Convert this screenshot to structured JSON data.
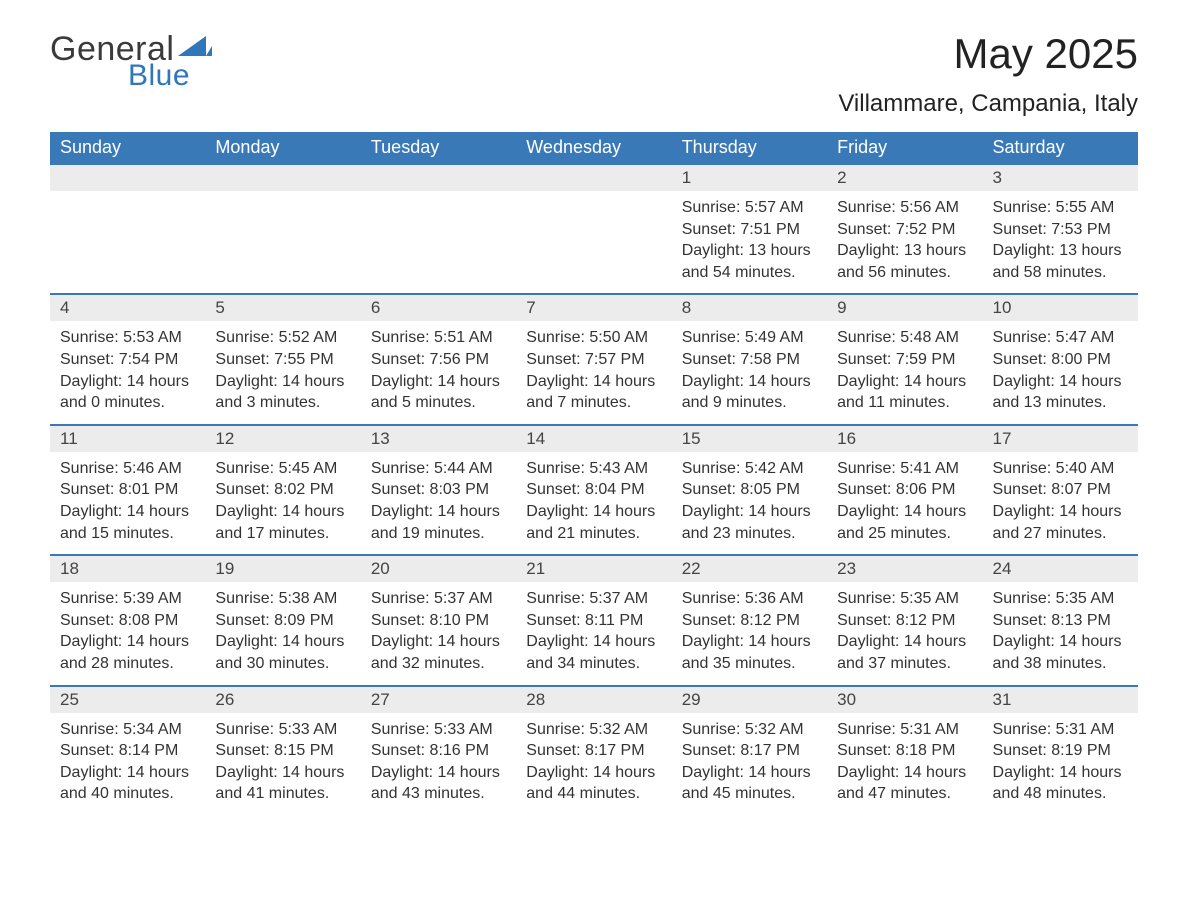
{
  "logo": {
    "word1": "General",
    "word2": "Blue",
    "text_color": "#3a3a3a",
    "accent_color": "#2f76bb"
  },
  "title": "May 2025",
  "location": "Villammare, Campania, Italy",
  "colors": {
    "header_bg": "#3a79b7",
    "header_text": "#ffffff",
    "daynum_bg": "#ececec",
    "daynum_text": "#444444",
    "body_text": "#333333",
    "row_divider": "#3a79b7",
    "page_bg": "#ffffff"
  },
  "fonts": {
    "title_size_pt": 32,
    "location_size_pt": 18,
    "header_size_pt": 14,
    "daynum_size_pt": 13,
    "body_size_pt": 12
  },
  "weekdays": [
    "Sunday",
    "Monday",
    "Tuesday",
    "Wednesday",
    "Thursday",
    "Friday",
    "Saturday"
  ],
  "weeks": [
    [
      null,
      null,
      null,
      null,
      {
        "n": 1,
        "sunrise": "5:57 AM",
        "sunset": "7:51 PM",
        "daylight": "13 hours and 54 minutes."
      },
      {
        "n": 2,
        "sunrise": "5:56 AM",
        "sunset": "7:52 PM",
        "daylight": "13 hours and 56 minutes."
      },
      {
        "n": 3,
        "sunrise": "5:55 AM",
        "sunset": "7:53 PM",
        "daylight": "13 hours and 58 minutes."
      }
    ],
    [
      {
        "n": 4,
        "sunrise": "5:53 AM",
        "sunset": "7:54 PM",
        "daylight": "14 hours and 0 minutes."
      },
      {
        "n": 5,
        "sunrise": "5:52 AM",
        "sunset": "7:55 PM",
        "daylight": "14 hours and 3 minutes."
      },
      {
        "n": 6,
        "sunrise": "5:51 AM",
        "sunset": "7:56 PM",
        "daylight": "14 hours and 5 minutes."
      },
      {
        "n": 7,
        "sunrise": "5:50 AM",
        "sunset": "7:57 PM",
        "daylight": "14 hours and 7 minutes."
      },
      {
        "n": 8,
        "sunrise": "5:49 AM",
        "sunset": "7:58 PM",
        "daylight": "14 hours and 9 minutes."
      },
      {
        "n": 9,
        "sunrise": "5:48 AM",
        "sunset": "7:59 PM",
        "daylight": "14 hours and 11 minutes."
      },
      {
        "n": 10,
        "sunrise": "5:47 AM",
        "sunset": "8:00 PM",
        "daylight": "14 hours and 13 minutes."
      }
    ],
    [
      {
        "n": 11,
        "sunrise": "5:46 AM",
        "sunset": "8:01 PM",
        "daylight": "14 hours and 15 minutes."
      },
      {
        "n": 12,
        "sunrise": "5:45 AM",
        "sunset": "8:02 PM",
        "daylight": "14 hours and 17 minutes."
      },
      {
        "n": 13,
        "sunrise": "5:44 AM",
        "sunset": "8:03 PM",
        "daylight": "14 hours and 19 minutes."
      },
      {
        "n": 14,
        "sunrise": "5:43 AM",
        "sunset": "8:04 PM",
        "daylight": "14 hours and 21 minutes."
      },
      {
        "n": 15,
        "sunrise": "5:42 AM",
        "sunset": "8:05 PM",
        "daylight": "14 hours and 23 minutes."
      },
      {
        "n": 16,
        "sunrise": "5:41 AM",
        "sunset": "8:06 PM",
        "daylight": "14 hours and 25 minutes."
      },
      {
        "n": 17,
        "sunrise": "5:40 AM",
        "sunset": "8:07 PM",
        "daylight": "14 hours and 27 minutes."
      }
    ],
    [
      {
        "n": 18,
        "sunrise": "5:39 AM",
        "sunset": "8:08 PM",
        "daylight": "14 hours and 28 minutes."
      },
      {
        "n": 19,
        "sunrise": "5:38 AM",
        "sunset": "8:09 PM",
        "daylight": "14 hours and 30 minutes."
      },
      {
        "n": 20,
        "sunrise": "5:37 AM",
        "sunset": "8:10 PM",
        "daylight": "14 hours and 32 minutes."
      },
      {
        "n": 21,
        "sunrise": "5:37 AM",
        "sunset": "8:11 PM",
        "daylight": "14 hours and 34 minutes."
      },
      {
        "n": 22,
        "sunrise": "5:36 AM",
        "sunset": "8:12 PM",
        "daylight": "14 hours and 35 minutes."
      },
      {
        "n": 23,
        "sunrise": "5:35 AM",
        "sunset": "8:12 PM",
        "daylight": "14 hours and 37 minutes."
      },
      {
        "n": 24,
        "sunrise": "5:35 AM",
        "sunset": "8:13 PM",
        "daylight": "14 hours and 38 minutes."
      }
    ],
    [
      {
        "n": 25,
        "sunrise": "5:34 AM",
        "sunset": "8:14 PM",
        "daylight": "14 hours and 40 minutes."
      },
      {
        "n": 26,
        "sunrise": "5:33 AM",
        "sunset": "8:15 PM",
        "daylight": "14 hours and 41 minutes."
      },
      {
        "n": 27,
        "sunrise": "5:33 AM",
        "sunset": "8:16 PM",
        "daylight": "14 hours and 43 minutes."
      },
      {
        "n": 28,
        "sunrise": "5:32 AM",
        "sunset": "8:17 PM",
        "daylight": "14 hours and 44 minutes."
      },
      {
        "n": 29,
        "sunrise": "5:32 AM",
        "sunset": "8:17 PM",
        "daylight": "14 hours and 45 minutes."
      },
      {
        "n": 30,
        "sunrise": "5:31 AM",
        "sunset": "8:18 PM",
        "daylight": "14 hours and 47 minutes."
      },
      {
        "n": 31,
        "sunrise": "5:31 AM",
        "sunset": "8:19 PM",
        "daylight": "14 hours and 48 minutes."
      }
    ]
  ],
  "labels": {
    "sunrise": "Sunrise: ",
    "sunset": "Sunset: ",
    "daylight": "Daylight: "
  }
}
